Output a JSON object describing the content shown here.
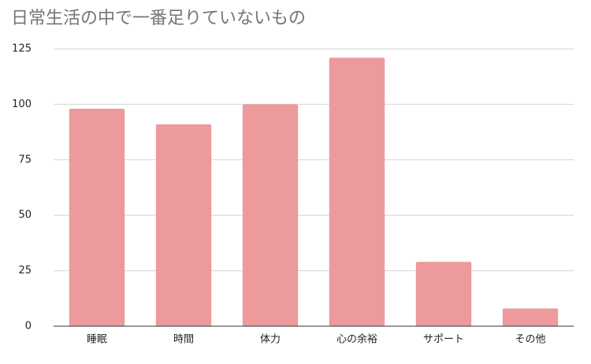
{
  "chart_data": {
    "type": "bar",
    "title": "日常生活の中で一番足りていないもの",
    "categories": [
      "睡眠",
      "時間",
      "体力",
      "心の余裕",
      "サポート",
      "その他"
    ],
    "values": [
      98,
      91,
      100,
      121,
      29,
      8
    ],
    "color": "#ec9a9c",
    "ylim": [
      0,
      125
    ],
    "yticks": [
      0,
      25,
      50,
      75,
      100,
      125
    ],
    "grid": true
  }
}
